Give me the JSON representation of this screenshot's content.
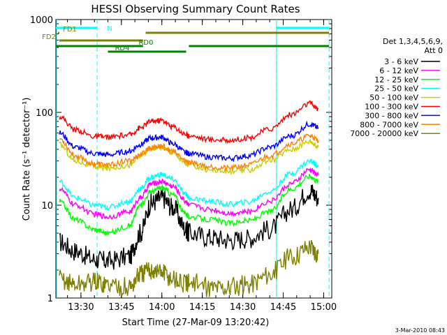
{
  "chart_data": {
    "type": "line",
    "title": "HESSI Observing Summary Count Rates",
    "xlabel": "Start Time (27-Mar-09 13:20:42)",
    "ylabel": "Count Rate (s⁻¹ detector⁻¹)",
    "y_scale": "log",
    "ylim": [
      1,
      1000
    ],
    "xlim": [
      "13:20:42",
      "15:03:00"
    ],
    "x_ticks": [
      "13:30",
      "13:45",
      "14:00",
      "14:15",
      "14:30",
      "14:45",
      "15:00"
    ],
    "y_ticks": [
      "1",
      "10",
      "100",
      "1000"
    ],
    "footer": "3-Mar-2010 08:43",
    "legend": {
      "header_lines": [
        "Det 1,3,4,5,6,9,",
        "Att 0"
      ],
      "position": "right"
    },
    "x": [
      "13:22",
      "13:28",
      "13:35",
      "13:40",
      "13:48",
      "13:52",
      "13:56",
      "14:00",
      "14:04",
      "14:09",
      "14:10",
      "14:18",
      "14:25",
      "14:32",
      "14:40",
      "14:48",
      "14:55",
      "14:58"
    ],
    "series": [
      {
        "name": "3 - 6 keV",
        "color": "#000000",
        "values": [
          4,
          3.2,
          2.6,
          2.5,
          2.8,
          5.0,
          10.5,
          12.0,
          9.5,
          5.5,
          5.0,
          4.5,
          4.2,
          4.4,
          5.5,
          9.0,
          14.5,
          12.0
        ]
      },
      {
        "name": "6 - 12 keV",
        "color": "#ff00ff",
        "values": [
          15,
          10,
          8,
          7.5,
          8.5,
          12,
          17,
          18,
          16,
          11,
          10,
          9,
          8.2,
          8.5,
          11,
          17,
          24,
          21
        ]
      },
      {
        "name": "12 - 25 keV",
        "color": "#00ff00",
        "values": [
          11,
          7,
          5.5,
          5.0,
          6.0,
          10,
          14,
          15.5,
          13,
          8.0,
          7.5,
          7.0,
          6.4,
          6.8,
          8.5,
          15,
          20.5,
          18
        ]
      },
      {
        "name": "25 - 50 keV",
        "color": "#00ffff",
        "values": [
          18,
          12,
          10,
          9.5,
          11,
          15,
          20,
          21.5,
          19,
          13,
          12,
          11,
          10.2,
          10.8,
          14,
          22,
          30,
          27
        ]
      },
      {
        "name": "50 - 100 keV",
        "color": "#cccc00",
        "values": [
          45,
          30,
          26,
          25,
          27,
          34,
          41,
          42,
          37,
          28,
          27,
          24,
          23,
          24,
          30,
          40,
          49,
          42
        ]
      },
      {
        "name": "100 - 300 keV",
        "color": "#ff0000",
        "values": [
          90,
          65,
          55,
          54,
          57,
          68,
          80,
          82,
          70,
          58,
          56,
          51,
          50,
          53,
          66,
          95,
          125,
          108
        ]
      },
      {
        "name": "300 - 800 keV",
        "color": "#0000ff",
        "values": [
          60,
          42,
          36,
          35,
          38,
          45,
          53,
          54,
          46,
          37,
          36,
          33,
          32,
          34,
          42,
          56,
          75,
          68
        ]
      },
      {
        "name": "800 - 7000 keV",
        "color": "#ff8000",
        "values": [
          52,
          34,
          28,
          27,
          30,
          35,
          42,
          43,
          38,
          30,
          29,
          26,
          25,
          27,
          34,
          46,
          56,
          50
        ]
      },
      {
        "name": "7000 - 20000 keV",
        "color": "#808000",
        "values": [
          1.6,
          1.4,
          1.5,
          1.4,
          1.3,
          1.8,
          2.0,
          1.9,
          1.6,
          1.4,
          1.5,
          1.3,
          1.3,
          1.4,
          1.8,
          2.8,
          3.6,
          3.0
        ]
      }
    ],
    "flags": [
      {
        "label": "N",
        "color": "#00ffff",
        "intervals": [
          [
            "13:20:42",
            "13:36:00"
          ],
          [
            "14:42:30",
            "15:02:00"
          ]
        ]
      },
      {
        "label": "FD1",
        "color": "#808000",
        "intervals": [
          [
            "13:21:30",
            "13:22:00"
          ],
          [
            "13:54:00",
            "15:02:00"
          ]
        ]
      },
      {
        "label": "FD2",
        "color": "#808000",
        "intervals": [
          [
            "13:22:00",
            "13:53:00"
          ]
        ]
      },
      {
        "label": "RD0",
        "color": "#008000",
        "intervals": [
          [
            "13:20:42",
            "13:53:00"
          ],
          [
            "14:10:00",
            "15:02:00"
          ]
        ]
      },
      {
        "label": "RD4",
        "color": "#008000",
        "intervals": [
          [
            "13:40:00",
            "14:09:00"
          ]
        ]
      }
    ],
    "vertical_markers": [
      "13:36:00",
      "14:42:30",
      "15:02:00"
    ],
    "grid": false
  }
}
